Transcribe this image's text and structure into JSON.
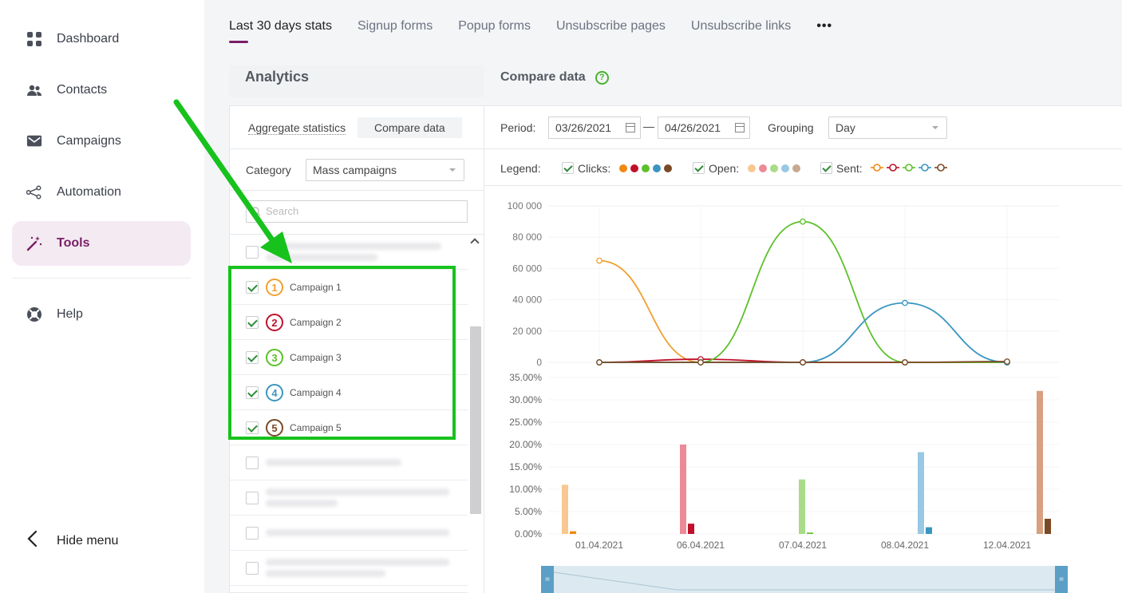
{
  "sidebar": {
    "items": [
      {
        "label": "Dashboard",
        "icon": "dashboard-icon"
      },
      {
        "label": "Contacts",
        "icon": "contacts-icon"
      },
      {
        "label": "Campaigns",
        "icon": "campaigns-icon"
      },
      {
        "label": "Automation",
        "icon": "automation-icon"
      },
      {
        "label": "Tools",
        "icon": "tools-icon",
        "active": true
      },
      {
        "label": "Help",
        "icon": "help-icon"
      }
    ],
    "hide_menu": "Hide menu"
  },
  "tabs": [
    "Last 30 days stats",
    "Signup forms",
    "Popup forms",
    "Unsubscribe pages",
    "Unsubscribe links"
  ],
  "tabs_more": "•••",
  "analytics": {
    "title": "Analytics",
    "subtabs": [
      "Aggregate statistics",
      "Compare data"
    ],
    "category_label": "Category",
    "category_value": "Mass campaigns",
    "search_placeholder": "Search",
    "campaigns": [
      {
        "num": "1",
        "label": "Campaign 1",
        "color": "#f0a030"
      },
      {
        "num": "2",
        "label": "Campaign 2",
        "color": "#c0102a"
      },
      {
        "num": "3",
        "label": "Campaign 3",
        "color": "#5cc02a"
      },
      {
        "num": "4",
        "label": "Campaign 4",
        "color": "#3a96c0"
      },
      {
        "num": "5",
        "label": "Campaign 5",
        "color": "#7a4a25"
      }
    ]
  },
  "compare": {
    "title": "Compare data",
    "help": "?",
    "period_label": "Period:",
    "date_from": "03/26/2021",
    "date_sep": "—",
    "date_to": "04/26/2021",
    "grouping_label": "Grouping",
    "grouping_value": "Day",
    "legend_label": "Legend:",
    "legend_clicks": "Clicks:",
    "legend_open": "Open:",
    "legend_sent": "Sent:",
    "clicks_colors": [
      "#f08a10",
      "#c0102a",
      "#5cc02a",
      "#3a96c0",
      "#7a4a25"
    ],
    "open_colors": [
      "#f8c890",
      "#ec8a98",
      "#a8dc88",
      "#98c8e4",
      "#c8a890"
    ]
  },
  "chart_data": [
    {
      "type": "line",
      "x": [
        "01.04.2021",
        "06.04.2021",
        "07.04.2021",
        "08.04.2021",
        "12.04.2021"
      ],
      "yticks": [
        "100 000",
        "80 000",
        "60 000",
        "40 000",
        "20 000",
        "0"
      ],
      "ylim": [
        0,
        100000
      ],
      "series": [
        {
          "values": [
            65000,
            0,
            0,
            0,
            0
          ],
          "color": "#f0a030"
        },
        {
          "values": [
            0,
            2000,
            0,
            0,
            0
          ],
          "color": "#c0102a"
        },
        {
          "values": [
            0,
            0,
            90000,
            0,
            0
          ],
          "color": "#5cc02a"
        },
        {
          "values": [
            0,
            0,
            0,
            38000,
            0
          ],
          "color": "#3a96c0"
        },
        {
          "values": [
            0,
            0,
            0,
            0,
            500
          ],
          "color": "#7a4a25"
        }
      ]
    },
    {
      "type": "bar",
      "categories": [
        "01.04.2021",
        "06.04.2021",
        "07.04.2021",
        "08.04.2021",
        "12.04.2021"
      ],
      "yticks": [
        "35.00%",
        "30.00%",
        "25.00%",
        "20.00%",
        "15.00%",
        "10.00%",
        "5.00%",
        "0.00%"
      ],
      "ylim": [
        0,
        35
      ],
      "open": [
        11,
        20,
        12.2,
        18.3,
        32
      ],
      "clicks": [
        0.6,
        2.3,
        0.3,
        1.5,
        3.4
      ],
      "open_colors": [
        "#f8c890",
        "#ec8a98",
        "#a8dc88",
        "#98c8e4",
        "#d8a080"
      ],
      "click_colors": [
        "#f08a10",
        "#c0102a",
        "#5cc02a",
        "#3a96c0",
        "#7a4a25"
      ]
    }
  ]
}
